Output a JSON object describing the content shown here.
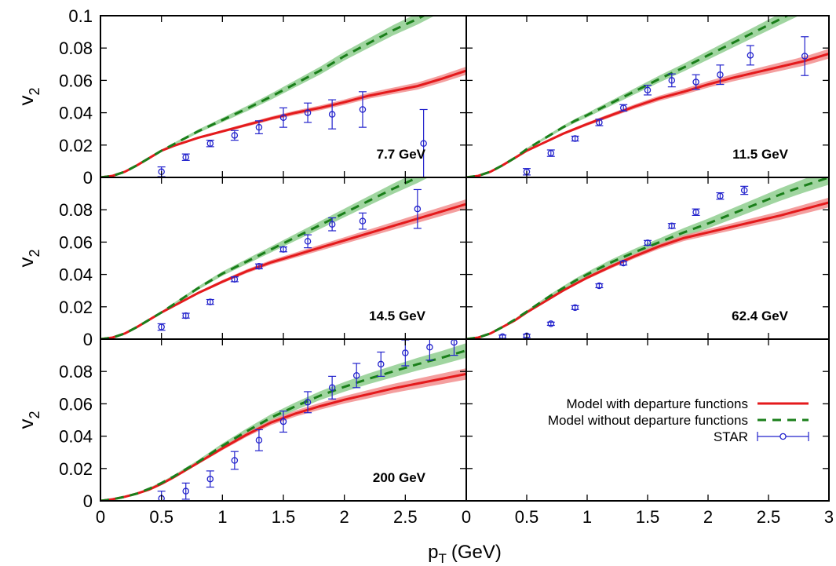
{
  "chart_data": {
    "type": "line",
    "layout": "3x2 panel grid with shared axes",
    "xlabel": "p",
    "xlabel_sub": "T",
    "xlabel_unit": "(GeV)",
    "ylabel": "v",
    "ylabel_sub": "2",
    "xlim": [
      0,
      3
    ],
    "ylim": [
      0,
      0.1
    ],
    "x_ticks": [
      0,
      0.5,
      1,
      1.5,
      2,
      2.5
    ],
    "x_ticks_right": [
      0,
      0.5,
      1,
      1.5,
      2,
      2.5,
      3
    ],
    "y_ticks_top": [
      "0",
      "0.02",
      "0.04",
      "0.06",
      "0.08",
      "0.1"
    ],
    "y_ticks": [
      "0",
      "0.02",
      "0.04",
      "0.06",
      "0.08"
    ],
    "legend": {
      "position": "lower-right panel",
      "entries": [
        {
          "label": "Model with departure functions",
          "series": "with_df",
          "color": "#e41a1c",
          "style": "solid"
        },
        {
          "label": "Model without departure functions",
          "series": "without_df",
          "color": "#1a7f1a",
          "style": "dashed"
        },
        {
          "label": "STAR",
          "series": "star",
          "color": "#2222cc",
          "style": "points with error bars"
        }
      ]
    },
    "colors": {
      "with_df": "#e41a1c",
      "with_df_band": "#f28e8e",
      "without_df": "#1a7f1a",
      "without_df_band": "#8fce8f",
      "star": "#2222cc"
    },
    "panels": [
      {
        "label": "7.7 GeV",
        "with_df": {
          "x": [
            0,
            0.1,
            0.2,
            0.3,
            0.4,
            0.5,
            0.6,
            0.7,
            0.8,
            0.9,
            1.0,
            1.2,
            1.4,
            1.6,
            1.8,
            2.0,
            2.2,
            2.4,
            2.6,
            2.8,
            3.0
          ],
          "y": [
            0,
            0.001,
            0.0035,
            0.0075,
            0.012,
            0.0165,
            0.0195,
            0.022,
            0.0245,
            0.0265,
            0.0285,
            0.0325,
            0.0365,
            0.04,
            0.043,
            0.0465,
            0.0505,
            0.0535,
            0.0565,
            0.061,
            0.066
          ],
          "band": 0.0025
        },
        "without_df": {
          "x": [
            0,
            0.1,
            0.2,
            0.3,
            0.4,
            0.5,
            0.6,
            0.7,
            0.8,
            0.9,
            1.0,
            1.2,
            1.4,
            1.6,
            1.8,
            2.0,
            2.2,
            2.4,
            2.6,
            2.8,
            3.0
          ],
          "y": [
            0,
            0.001,
            0.0035,
            0.0075,
            0.012,
            0.0165,
            0.0205,
            0.0245,
            0.0285,
            0.032,
            0.0355,
            0.0425,
            0.05,
            0.058,
            0.066,
            0.075,
            0.083,
            0.091,
            0.098,
            0.106,
            0.114
          ],
          "band": 0.004
        },
        "star": {
          "x": [
            0.5,
            0.7,
            0.9,
            1.1,
            1.3,
            1.5,
            1.7,
            1.9,
            2.15,
            2.65
          ],
          "y": [
            0.0035,
            0.0125,
            0.021,
            0.026,
            0.031,
            0.037,
            0.04,
            0.039,
            0.042,
            0.021
          ],
          "err": [
            0.003,
            0.002,
            0.002,
            0.003,
            0.004,
            0.006,
            0.006,
            0.009,
            0.011,
            0.021
          ]
        }
      },
      {
        "label": "11.5 GeV",
        "with_df": {
          "x": [
            0,
            0.1,
            0.2,
            0.3,
            0.4,
            0.5,
            0.6,
            0.7,
            0.8,
            0.9,
            1.0,
            1.2,
            1.4,
            1.6,
            1.8,
            2.0,
            2.2,
            2.4,
            2.6,
            2.8,
            3.0
          ],
          "y": [
            0,
            0.001,
            0.0035,
            0.0075,
            0.012,
            0.0165,
            0.02,
            0.0235,
            0.027,
            0.03,
            0.033,
            0.0385,
            0.044,
            0.049,
            0.053,
            0.0575,
            0.0615,
            0.065,
            0.0685,
            0.072,
            0.0765
          ],
          "band": 0.003
        },
        "without_df": {
          "x": [
            0,
            0.1,
            0.2,
            0.3,
            0.4,
            0.5,
            0.6,
            0.7,
            0.8,
            0.9,
            1.0,
            1.2,
            1.4,
            1.6,
            1.8,
            2.0,
            2.2,
            2.4,
            2.6,
            2.8,
            3.0
          ],
          "y": [
            0,
            0.001,
            0.0035,
            0.0075,
            0.012,
            0.0175,
            0.022,
            0.0265,
            0.031,
            0.035,
            0.0385,
            0.046,
            0.0535,
            0.061,
            0.068,
            0.0755,
            0.083,
            0.0905,
            0.098,
            0.1055,
            0.113
          ],
          "band": 0.004
        },
        "star": {
          "x": [
            0.5,
            0.7,
            0.9,
            1.1,
            1.3,
            1.5,
            1.7,
            1.9,
            2.1,
            2.35,
            2.8
          ],
          "y": [
            0.0035,
            0.015,
            0.024,
            0.034,
            0.043,
            0.054,
            0.06,
            0.059,
            0.0635,
            0.0755,
            0.075
          ],
          "err": [
            0.002,
            0.002,
            0.0015,
            0.002,
            0.002,
            0.003,
            0.004,
            0.0045,
            0.006,
            0.006,
            0.012
          ]
        }
      },
      {
        "label": "14.5 GeV",
        "with_df": {
          "x": [
            0,
            0.1,
            0.2,
            0.3,
            0.4,
            0.5,
            0.6,
            0.7,
            0.8,
            0.9,
            1.0,
            1.2,
            1.4,
            1.6,
            1.8,
            2.0,
            2.2,
            2.4,
            2.6,
            2.8,
            3.0
          ],
          "y": [
            0,
            0.001,
            0.0035,
            0.0075,
            0.012,
            0.0165,
            0.0205,
            0.0245,
            0.0285,
            0.032,
            0.0355,
            0.042,
            0.0475,
            0.052,
            0.0565,
            0.061,
            0.0655,
            0.07,
            0.0745,
            0.079,
            0.0835
          ],
          "band": 0.003
        },
        "without_df": {
          "x": [
            0,
            0.1,
            0.2,
            0.3,
            0.4,
            0.5,
            0.6,
            0.7,
            0.8,
            0.9,
            1.0,
            1.2,
            1.4,
            1.6,
            1.8,
            2.0,
            2.2,
            2.4,
            2.6,
            2.8,
            3.0
          ],
          "y": [
            0,
            0.001,
            0.0035,
            0.0075,
            0.012,
            0.0165,
            0.0215,
            0.0265,
            0.0315,
            0.036,
            0.0405,
            0.048,
            0.0555,
            0.063,
            0.0705,
            0.078,
            0.0855,
            0.093,
            0.1,
            0.108,
            0.115
          ],
          "band": 0.004
        },
        "star": {
          "x": [
            0.5,
            0.7,
            0.9,
            1.1,
            1.3,
            1.5,
            1.7,
            1.9,
            2.15,
            2.6
          ],
          "y": [
            0.0075,
            0.0145,
            0.023,
            0.037,
            0.045,
            0.0555,
            0.0605,
            0.071,
            0.073,
            0.0805
          ],
          "err": [
            0.002,
            0.0015,
            0.0015,
            0.0015,
            0.0015,
            0.0015,
            0.004,
            0.004,
            0.005,
            0.012
          ]
        }
      },
      {
        "label": "62.4 GeV",
        "with_df": {
          "x": [
            0,
            0.1,
            0.2,
            0.3,
            0.4,
            0.5,
            0.6,
            0.7,
            0.8,
            0.9,
            1.0,
            1.2,
            1.4,
            1.6,
            1.8,
            2.0,
            2.2,
            2.4,
            2.6,
            2.8,
            3.0
          ],
          "y": [
            0,
            0.001,
            0.0035,
            0.0075,
            0.0115,
            0.0165,
            0.021,
            0.0255,
            0.03,
            0.034,
            0.038,
            0.045,
            0.0515,
            0.0575,
            0.0625,
            0.066,
            0.0695,
            0.073,
            0.0765,
            0.0805,
            0.0845
          ],
          "band": 0.003
        },
        "without_df": {
          "x": [
            0,
            0.1,
            0.2,
            0.3,
            0.4,
            0.5,
            0.6,
            0.7,
            0.8,
            0.9,
            1.0,
            1.2,
            1.4,
            1.6,
            1.8,
            2.0,
            2.2,
            2.4,
            2.6,
            2.8,
            3.0
          ],
          "y": [
            0,
            0.001,
            0.0035,
            0.0075,
            0.012,
            0.017,
            0.022,
            0.027,
            0.0315,
            0.036,
            0.04,
            0.0475,
            0.054,
            0.06,
            0.066,
            0.0715,
            0.0775,
            0.0835,
            0.0895,
            0.095,
            0.1
          ],
          "band": 0.0045
        },
        "star": {
          "x": [
            0.3,
            0.5,
            0.7,
            0.9,
            1.1,
            1.3,
            1.5,
            1.7,
            1.9,
            2.1,
            2.3
          ],
          "y": [
            0.0015,
            0.002,
            0.0095,
            0.0195,
            0.033,
            0.047,
            0.0595,
            0.07,
            0.0785,
            0.0885,
            0.092
          ],
          "err": [
            0.001,
            0.001,
            0.001,
            0.0012,
            0.0012,
            0.0012,
            0.0015,
            0.0015,
            0.002,
            0.002,
            0.0025
          ]
        }
      },
      {
        "label": "200 GeV",
        "with_df": {
          "x": [
            0,
            0.1,
            0.2,
            0.3,
            0.4,
            0.5,
            0.6,
            0.7,
            0.8,
            0.9,
            1.0,
            1.2,
            1.4,
            1.6,
            1.8,
            2.0,
            2.2,
            2.4,
            2.6,
            2.8,
            3.0
          ],
          "y": [
            0,
            0.001,
            0.0025,
            0.0045,
            0.007,
            0.0105,
            0.0145,
            0.019,
            0.0235,
            0.028,
            0.0325,
            0.041,
            0.0485,
            0.054,
            0.0585,
            0.0625,
            0.066,
            0.0695,
            0.0725,
            0.0755,
            0.0785
          ],
          "band": 0.0035
        },
        "without_df": {
          "x": [
            0,
            0.1,
            0.2,
            0.3,
            0.4,
            0.5,
            0.6,
            0.7,
            0.8,
            0.9,
            1.0,
            1.2,
            1.4,
            1.6,
            1.8,
            2.0,
            2.2,
            2.4,
            2.6,
            2.8,
            3.0
          ],
          "y": [
            0,
            0.001,
            0.0025,
            0.0045,
            0.0075,
            0.011,
            0.015,
            0.0195,
            0.024,
            0.029,
            0.034,
            0.043,
            0.0515,
            0.0585,
            0.065,
            0.0705,
            0.0755,
            0.08,
            0.0845,
            0.0885,
            0.093
          ],
          "band": 0.0045
        },
        "star": {
          "x": [
            0.5,
            0.7,
            0.9,
            1.1,
            1.3,
            1.5,
            1.7,
            1.9,
            2.1,
            2.3,
            2.5,
            2.7,
            2.9
          ],
          "y": [
            0.0015,
            0.006,
            0.0135,
            0.025,
            0.0375,
            0.049,
            0.061,
            0.07,
            0.0775,
            0.0845,
            0.0915,
            0.095,
            0.098
          ],
          "err": [
            0.0045,
            0.005,
            0.005,
            0.0055,
            0.0065,
            0.0065,
            0.0065,
            0.007,
            0.0075,
            0.0075,
            0.008,
            0.008,
            0.008
          ]
        }
      }
    ]
  }
}
